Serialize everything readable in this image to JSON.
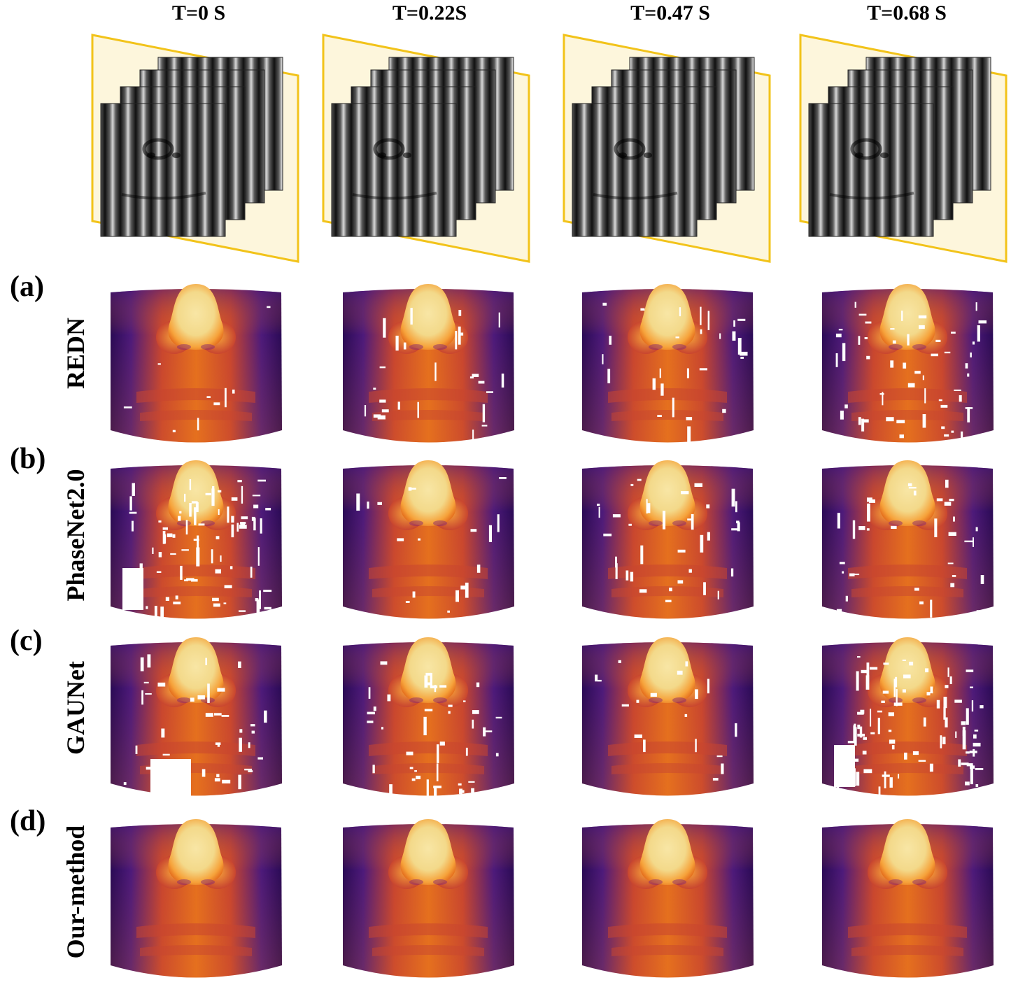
{
  "time_labels": [
    "T=0 S",
    "T=0.22S",
    "T=0.47 S",
    "T=0.68 S"
  ],
  "rows": [
    {
      "letter": "(a)",
      "method": "REDN"
    },
    {
      "letter": "(b)",
      "method": "PhaseNet2.0"
    },
    {
      "letter": "(c)",
      "method": "GAUNet"
    },
    {
      "letter": "(d)",
      "method": "Our-method"
    }
  ],
  "colors": {
    "frame_border": "#f2c31a",
    "frame_fill": "#fdf6dc",
    "artifact": "#ffffff",
    "colormap": [
      "#2a0a55",
      "#4d1a7a",
      "#8a2a6e",
      "#c8452f",
      "#e5701e",
      "#f6a23a",
      "#f8e6a5"
    ]
  }
}
